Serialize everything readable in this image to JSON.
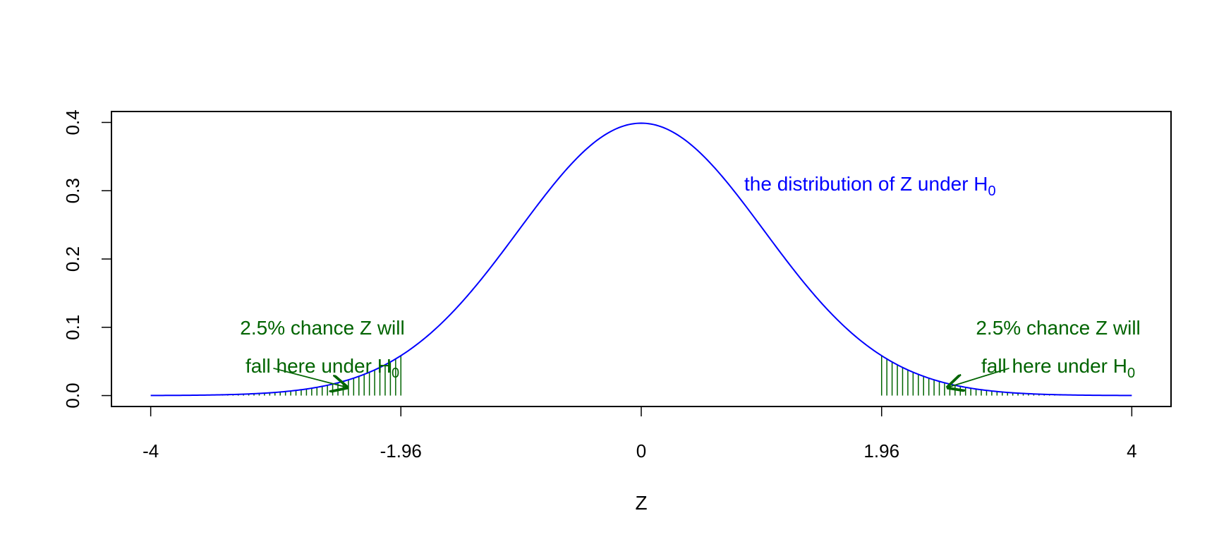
{
  "chart_data": {
    "type": "line",
    "title": "",
    "xlabel": "Z",
    "ylabel": "",
    "xlim": [
      -4.32,
      4.32
    ],
    "ylim": [
      -0.016,
      0.416
    ],
    "x_ticks": [
      -4,
      -1.96,
      0,
      1.96,
      4
    ],
    "x_tick_labels": [
      "-4",
      "-1.96",
      "0",
      "1.96",
      "4"
    ],
    "y_ticks": [
      0.0,
      0.1,
      0.2,
      0.3,
      0.4
    ],
    "y_tick_labels": [
      "0.0",
      "0.1",
      "0.2",
      "0.3",
      "0.4"
    ],
    "grid": false,
    "series": [
      {
        "distribution": "standard normal density",
        "x_range": [
          -4,
          4
        ],
        "color": "#0000ff",
        "points": [
          [
            -4,
            0.0001
          ],
          [
            -3.5,
            0.0009
          ],
          [
            -3,
            0.0044
          ],
          [
            -2.5,
            0.0175
          ],
          [
            -1.96,
            0.0584
          ],
          [
            -1.5,
            0.1295
          ],
          [
            -1,
            0.242
          ],
          [
            -0.5,
            0.3521
          ],
          [
            0,
            0.3989
          ],
          [
            0.5,
            0.3521
          ],
          [
            1,
            0.242
          ],
          [
            1.5,
            0.1295
          ],
          [
            1.96,
            0.0584
          ],
          [
            2.5,
            0.0175
          ],
          [
            3,
            0.0044
          ],
          [
            3.5,
            0.0009
          ],
          [
            4,
            0.0001
          ]
        ]
      }
    ],
    "shaded_regions": [
      {
        "from": -3.5,
        "to": -1.96,
        "pattern": "vertical-hatch",
        "color": "#006400"
      },
      {
        "from": 1.96,
        "to": 3.5,
        "pattern": "vertical-hatch",
        "color": "#006400"
      }
    ],
    "annotations": [
      {
        "line1": "the distribution of Z under H",
        "subscript": "0",
        "color": "#0000ff",
        "x": 0.84,
        "y": 0.3
      },
      {
        "line1": "2.5% chance Z will",
        "line2": "fall here under H",
        "subscript": "0",
        "color": "#006400",
        "x": -2.6,
        "y": 0.1,
        "arrow_from": [
          -3.0,
          0.04
        ],
        "arrow_to": [
          -2.4,
          0.012
        ]
      },
      {
        "line1": "2.5% chance Z will",
        "line2": "fall here under H",
        "subscript": "0",
        "color": "#006400",
        "x": 3.4,
        "y": 0.1,
        "arrow_from": [
          3.0,
          0.04
        ],
        "arrow_to": [
          2.5,
          0.012
        ]
      }
    ]
  }
}
